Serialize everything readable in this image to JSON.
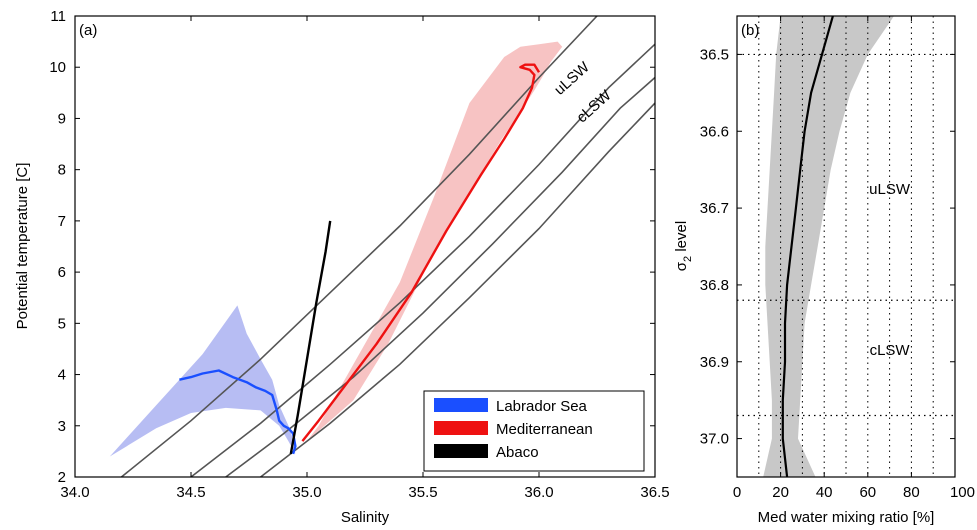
{
  "chart_data": [
    {
      "panel_label": "(a)",
      "type": "line",
      "xlabel": "Salinity",
      "ylabel": "Potential temperature [C]",
      "xlim": [
        34.0,
        36.5
      ],
      "ylim": [
        2,
        11
      ],
      "xticks": [
        "34.0",
        "34.5",
        "35.0",
        "35.5",
        "36.0",
        "36.5"
      ],
      "yticks": [
        "2",
        "3",
        "4",
        "5",
        "6",
        "7",
        "8",
        "9",
        "10",
        "11"
      ],
      "legend": {
        "position": "bottom-right"
      },
      "series": [
        {
          "name": "Labrador Sea",
          "color": "#1a4fff",
          "band_color": "#b7bdf3",
          "x": [
            34.45,
            34.5,
            34.55,
            34.62,
            34.68,
            34.74,
            34.78,
            34.82,
            34.85,
            34.87,
            34.88,
            34.9,
            34.92,
            34.94,
            34.95,
            34.94
          ],
          "y": [
            3.9,
            3.95,
            4.02,
            4.08,
            3.95,
            3.85,
            3.75,
            3.68,
            3.6,
            3.3,
            3.1,
            3.0,
            2.95,
            2.85,
            2.6,
            2.45
          ],
          "band_upper_x": [
            34.15,
            34.35,
            34.55,
            34.7,
            34.74,
            34.8,
            34.85,
            34.88,
            34.93,
            34.95
          ],
          "band_upper_y": [
            2.4,
            3.4,
            4.4,
            5.35,
            4.8,
            4.3,
            3.9,
            3.4,
            2.9,
            2.45
          ],
          "band_lower_x": [
            34.95,
            34.92,
            34.88,
            34.8,
            34.65,
            34.5,
            34.35,
            34.15
          ],
          "band_lower_y": [
            2.45,
            2.7,
            3.0,
            3.3,
            3.35,
            3.25,
            2.95,
            2.4
          ]
        },
        {
          "name": "Mediterranean",
          "color": "#ee1111",
          "band_color": "#f7c3c3",
          "x": [
            34.98,
            35.05,
            35.15,
            35.3,
            35.45,
            35.6,
            35.75,
            35.85,
            35.93,
            35.97,
            35.98,
            35.96,
            35.92,
            35.94,
            35.98,
            36.0
          ],
          "y": [
            2.7,
            3.1,
            3.7,
            4.6,
            5.6,
            6.8,
            7.9,
            8.6,
            9.2,
            9.6,
            9.85,
            9.95,
            10.0,
            10.05,
            10.05,
            9.9
          ],
          "band_upper_x": [
            35.0,
            35.2,
            35.35,
            35.55,
            35.72,
            35.84,
            35.93,
            35.98,
            36.02,
            36.05,
            36.1
          ],
          "band_upper_y": [
            2.7,
            3.5,
            4.6,
            6.4,
            7.7,
            8.6,
            9.2,
            9.55,
            9.85,
            10.1,
            10.4
          ],
          "band_lower_x": [
            36.08,
            36.0,
            35.92,
            35.85,
            35.7,
            35.55,
            35.4,
            35.2,
            35.05,
            35.0
          ],
          "band_lower_y": [
            10.5,
            10.45,
            10.4,
            10.2,
            9.3,
            7.5,
            5.8,
            4.2,
            3.0,
            2.7
          ]
        },
        {
          "name": "Abaco",
          "color": "#000000",
          "x": [
            34.93,
            34.96,
            35.0,
            35.04,
            35.08,
            35.1
          ],
          "y": [
            2.45,
            3.2,
            4.3,
            5.4,
            6.4,
            7.0
          ]
        }
      ],
      "isopycnals": [
        {
          "label": "uLSW",
          "x": [
            34.2,
            34.5,
            34.8,
            35.1,
            35.4,
            35.7,
            36.0,
            36.25
          ],
          "y": [
            2.0,
            3.1,
            4.3,
            5.6,
            6.9,
            8.3,
            9.8,
            11.0
          ]
        },
        {
          "label": "",
          "x": [
            34.5,
            34.8,
            35.1,
            35.4,
            35.7,
            36.0,
            36.3,
            36.5
          ],
          "y": [
            2.0,
            3.05,
            4.2,
            5.4,
            6.7,
            8.1,
            9.6,
            10.45
          ]
        },
        {
          "label": "cLSW",
          "x": [
            34.65,
            34.9,
            35.2,
            35.5,
            35.8,
            36.1,
            36.35,
            36.5
          ],
          "y": [
            2.0,
            2.85,
            3.95,
            5.2,
            6.55,
            7.95,
            9.2,
            9.8
          ]
        },
        {
          "label": "",
          "x": [
            34.8,
            35.1,
            35.4,
            35.7,
            36.0,
            36.3,
            36.5
          ],
          "y": [
            2.0,
            3.05,
            4.2,
            5.5,
            6.85,
            8.35,
            9.3
          ]
        }
      ]
    },
    {
      "panel_label": "(b)",
      "type": "line",
      "xlabel": "Med water mixing ratio [%]",
      "ylabel_main": "σ",
      "ylabel_sub": "2",
      "ylabel_rest": " level",
      "xlim": [
        0,
        100
      ],
      "ylim": [
        36.45,
        37.05
      ],
      "y_inverted": true,
      "xticks": [
        "0",
        "20",
        "40",
        "60",
        "80",
        "100"
      ],
      "yticks": [
        "36.5",
        "36.6",
        "36.7",
        "36.8",
        "36.9",
        "37.0"
      ],
      "grid": "dotted",
      "layer_boundaries": [
        36.5,
        36.82,
        36.97
      ],
      "layer_labels": [
        {
          "text": "uLSW",
          "x": 70,
          "y": 36.675
        },
        {
          "text": "cLSW",
          "x": 70,
          "y": 36.885
        }
      ],
      "series": [
        {
          "name": "",
          "color": "#000000",
          "band_color": "#c8c8c8",
          "y": [
            36.45,
            36.5,
            36.55,
            36.6,
            36.65,
            36.7,
            36.75,
            36.8,
            36.85,
            36.9,
            36.95,
            37.0,
            37.05
          ],
          "x": [
            44,
            39,
            34,
            31,
            29,
            27,
            25,
            23,
            22,
            22,
            21,
            21,
            23
          ],
          "band_low": [
            20,
            18,
            17,
            16,
            15,
            14,
            13,
            13,
            14,
            15,
            16,
            16,
            12
          ],
          "band_high": [
            72,
            60,
            52,
            47,
            43,
            40,
            37,
            34,
            31,
            30,
            29,
            28,
            36
          ]
        }
      ]
    }
  ]
}
